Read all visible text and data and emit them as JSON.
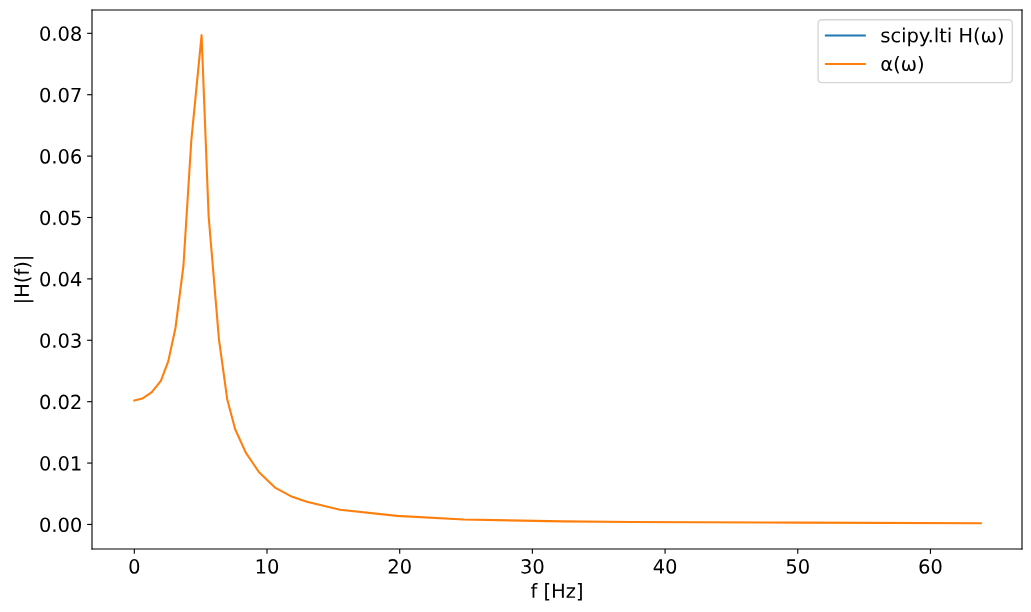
{
  "chart_data": {
    "type": "line",
    "xlabel": "f [Hz]",
    "ylabel": "|H(f)|",
    "x": [
      0,
      0.6,
      1.3,
      2.0,
      2.56,
      3.1,
      3.7,
      4.3,
      5.07,
      5.6,
      6.38,
      7.0,
      7.6,
      8.4,
      9.4,
      10.6,
      11.9,
      13.0,
      15.5,
      19.8,
      24.8,
      32.3,
      37.4,
      50.2,
      63.8
    ],
    "series": [
      {
        "name": "scipy.lti H(ω)",
        "color": "#1f77b4",
        "values": [
          null,
          null,
          null,
          null,
          null,
          null,
          null,
          null,
          null,
          null,
          null,
          null,
          null,
          null,
          null,
          null,
          null,
          null,
          null,
          null,
          null,
          null,
          null,
          null,
          null
        ]
      },
      {
        "name": "α(ω)",
        "color": "#ff7f0e",
        "values": [
          0.0202,
          0.0205,
          0.0215,
          0.0234,
          0.0266,
          0.032,
          0.0421,
          0.0627,
          0.0797,
          0.0502,
          0.0301,
          0.0204,
          0.0155,
          0.0117,
          0.0085,
          0.006,
          0.0045,
          0.0037,
          0.0024,
          0.0014,
          0.0008,
          0.0005,
          0.0004,
          0.0003,
          0.0002
        ]
      }
    ],
    "xlim": [
      -3.19,
      66.9
    ],
    "xticks": [
      0,
      10,
      20,
      30,
      40,
      50,
      60
    ],
    "ylim": [
      -0.004,
      0.0838
    ],
    "yticks": [
      {
        "value": 0,
        "label": "0.00"
      },
      {
        "value": 0.01,
        "label": "0.01"
      },
      {
        "value": 0.02,
        "label": "0.02"
      },
      {
        "value": 0.03,
        "label": "0.03"
      },
      {
        "value": 0.04,
        "label": "0.04"
      },
      {
        "value": 0.05,
        "label": "0.05"
      },
      {
        "value": 0.06,
        "label": "0.06"
      },
      {
        "value": 0.07,
        "label": "0.07"
      },
      {
        "value": 0.08,
        "label": "0.08"
      }
    ],
    "grid": false,
    "legend": "top right"
  }
}
